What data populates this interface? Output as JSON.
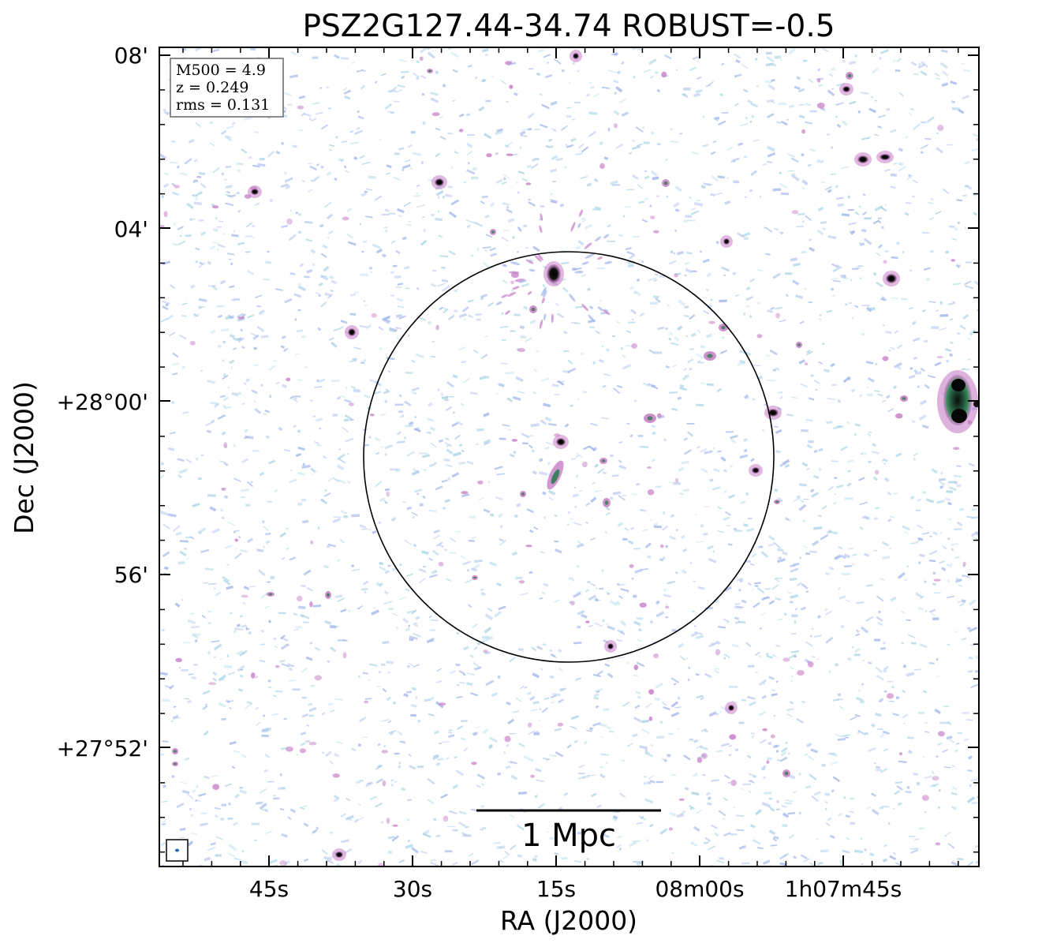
{
  "figure": {
    "title": "PSZ2G127.44-34.74 ROBUST=-0.5",
    "xlabel": "RA (J2000)",
    "ylabel": "Dec (J2000)",
    "x_ticks": [
      "45s",
      "30s",
      "15s",
      "08m00s",
      "1h07m45s"
    ],
    "y_ticks": [
      "08'",
      "04'",
      "+28°00'",
      "56'",
      "+27°52'"
    ],
    "info_box": {
      "line1": "M500 = 4.9",
      "line2": "z = 0.249",
      "line3": "rms = 0.131"
    },
    "scale_bar": {
      "label": "1 Mpc"
    },
    "colors": {
      "background": "#ffffff",
      "noise_blue": "#9fb4ea",
      "noise_cyan": "#a9d3e6",
      "emission_pink": "#c67ec6",
      "source_core": "#000000",
      "source_green": "#2e7d4f"
    }
  }
}
